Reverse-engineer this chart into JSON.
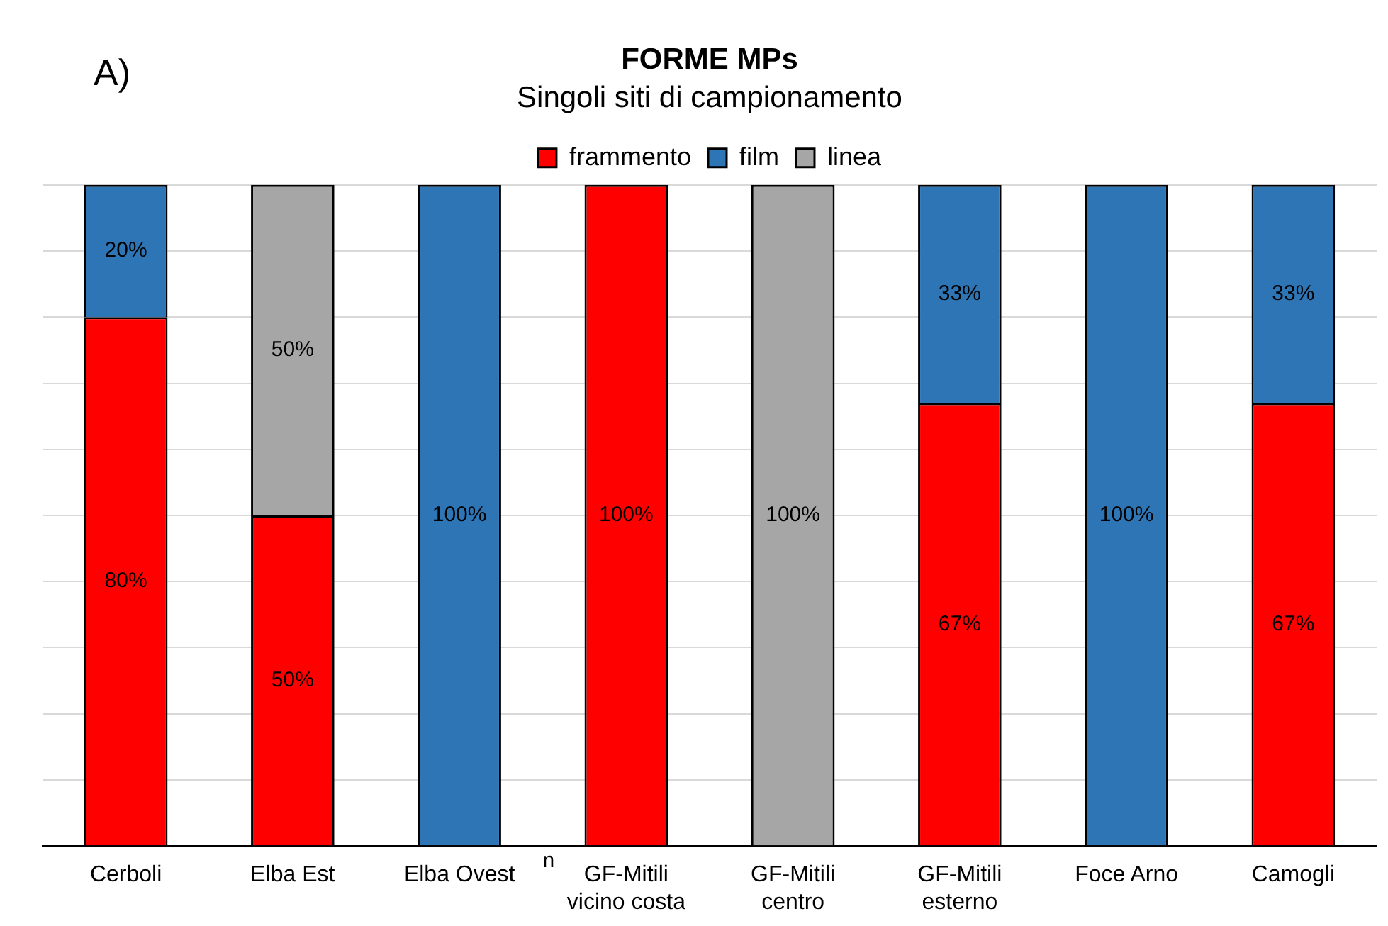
{
  "chart_data": {
    "type": "bar",
    "title": "FORME MPs",
    "subtitle": "Singoli siti di campionamento",
    "annotations": [
      "A)",
      "n"
    ],
    "categories": [
      "Cerboli",
      "Elba Est",
      "Elba Ovest",
      "GF-Mitili vicino costa",
      "GF-Mitili centro",
      "GF-Mitili esterno",
      "Foce Arno",
      "Camogli"
    ],
    "stacked": true,
    "series": [
      {
        "name": "frammento",
        "color": "#ff0000",
        "values": [
          80,
          50,
          null,
          100,
          null,
          67,
          null,
          67
        ],
        "value_labels": [
          "80%",
          "50%",
          null,
          "100%",
          null,
          "67%",
          null,
          "67%"
        ]
      },
      {
        "name": "film",
        "color": "#2e75b6",
        "values": [
          20,
          null,
          100,
          null,
          null,
          33,
          100,
          33
        ],
        "value_labels": [
          "20%",
          null,
          "100%",
          null,
          null,
          "33%",
          "100%",
          "33%"
        ]
      },
      {
        "name": "linea",
        "color": "#a6a6a6",
        "values": [
          null,
          50,
          null,
          null,
          100,
          null,
          null,
          null
        ],
        "value_labels": [
          null,
          "50%",
          null,
          null,
          "100%",
          null,
          null,
          null
        ]
      }
    ],
    "ylim": [
      0,
      100
    ],
    "yticks": [
      {
        "value": 0,
        "label": null
      },
      {
        "value": 10,
        "label": null
      },
      {
        "value": 20,
        "label": null
      },
      {
        "value": 30,
        "label": null
      },
      {
        "value": 40,
        "label": null
      },
      {
        "value": 50,
        "label": null
      },
      {
        "value": 60,
        "label": null
      },
      {
        "value": 70,
        "label": null
      },
      {
        "value": 80,
        "label": null
      },
      {
        "value": 90,
        "label": null
      },
      {
        "value": 100,
        "label": null
      }
    ],
    "tick_labels": "x",
    "grid": "y",
    "legend": "top"
  }
}
